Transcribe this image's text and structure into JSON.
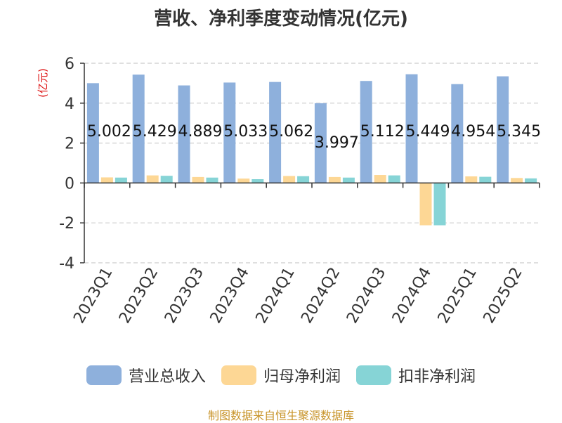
{
  "chart_data": {
    "type": "bar",
    "title": "营收、净利季度变动情况(亿元)",
    "ylabel": "(亿元)",
    "xlabel": "",
    "ylim": [
      -4,
      6
    ],
    "yticks": [
      -4,
      -2,
      0,
      2,
      4,
      6
    ],
    "grid": true,
    "legend_position": "bottom",
    "categories": [
      "2023Q1",
      "2023Q2",
      "2023Q3",
      "2023Q4",
      "2024Q1",
      "2024Q2",
      "2024Q3",
      "2024Q4",
      "2025Q1",
      "2025Q2"
    ],
    "series": [
      {
        "name": "营业总收入",
        "color": "#8eb0dc",
        "values": [
          5.002,
          5.429,
          4.889,
          5.033,
          5.062,
          3.997,
          5.112,
          5.449,
          4.954,
          5.345
        ]
      },
      {
        "name": "归母净利润",
        "color": "#fdd795",
        "values": [
          0.28,
          0.38,
          0.3,
          0.22,
          0.35,
          0.3,
          0.4,
          -2.12,
          0.33,
          0.25
        ]
      },
      {
        "name": "扣非净利润",
        "color": "#86d4d6",
        "values": [
          0.27,
          0.36,
          0.27,
          0.19,
          0.34,
          0.27,
          0.38,
          -2.12,
          0.31,
          0.23
        ]
      }
    ]
  },
  "source": "制图数据来自恒生聚源数据库",
  "colors": {
    "source_text": "#c8942a",
    "ylabel_text": "#dd1111",
    "axis": "#333333",
    "grid": "#cccccc"
  }
}
